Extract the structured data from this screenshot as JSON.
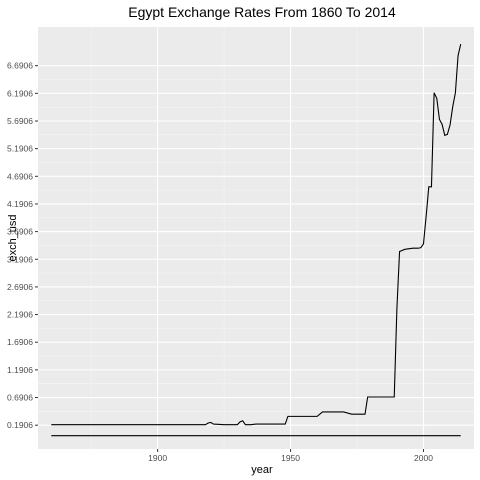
{
  "chart_data": {
    "type": "line",
    "title": "Egypt Exchange Rates From 1860 To 2014",
    "xlabel": "year",
    "ylabel": "exch_usd",
    "xlim": [
      1855,
      2019
    ],
    "ylim": [
      -0.24,
      7.39
    ],
    "x_ticks": [
      1900,
      1950,
      2000
    ],
    "x_minor_ticks": [
      1875,
      1925,
      1975
    ],
    "y_ticks": [
      0.1906,
      0.6906,
      1.1906,
      1.6906,
      2.1906,
      2.6906,
      3.1906,
      3.6906,
      4.1906,
      4.6906,
      5.1906,
      5.6906,
      6.1906,
      6.6906
    ],
    "y_tick_labels": [
      "0.1906",
      "0.6906",
      "1.1906",
      "1.6906",
      "2.1906",
      "2.6906",
      "3.1906",
      "3.6906",
      "4.1906",
      "4.6906",
      "5.1906",
      "5.6906",
      "6.1906",
      "6.6906"
    ],
    "grid": true,
    "colors": {
      "panel": "#ebebeb",
      "line": "#000000"
    },
    "series": [
      {
        "x": [
          1860,
          1918,
          1919,
          1920,
          1921,
          1925,
          1930,
          1931,
          1932,
          1933,
          1935,
          1937,
          1948,
          1949,
          1950,
          1955,
          1960,
          1962,
          1965,
          1970,
          1973,
          1974,
          1975,
          1978,
          1979,
          1985,
          1987,
          1989,
          1990,
          1991,
          1993,
          1996,
          1998,
          1999,
          2000,
          2001,
          2002,
          2003,
          2004,
          2005,
          2006,
          2007,
          2008,
          2009,
          2010,
          2011,
          2012,
          2013,
          2014
        ],
        "y": [
          0.2,
          0.2,
          0.23,
          0.24,
          0.21,
          0.2,
          0.2,
          0.25,
          0.27,
          0.2,
          0.2,
          0.21,
          0.21,
          0.35,
          0.35,
          0.35,
          0.35,
          0.43,
          0.43,
          0.43,
          0.39,
          0.39,
          0.39,
          0.39,
          0.7,
          0.7,
          0.7,
          0.7,
          2.3,
          3.33,
          3.37,
          3.39,
          3.39,
          3.4,
          3.47,
          3.97,
          4.5,
          4.5,
          6.2,
          6.1,
          5.72,
          5.63,
          5.43,
          5.45,
          5.62,
          5.95,
          6.2,
          6.87,
          7.08
        ]
      },
      {
        "x": [
          1860,
          2014
        ],
        "y": [
          0.0,
          0.0
        ]
      }
    ]
  }
}
